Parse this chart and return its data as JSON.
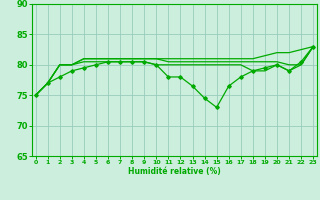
{
  "xlabel": "Humidité relative (%)",
  "background_color": "#cceedd",
  "grid_color": "#99ccbb",
  "line_color": "#00aa00",
  "x": [
    0,
    1,
    2,
    3,
    4,
    5,
    6,
    7,
    8,
    9,
    10,
    11,
    12,
    13,
    14,
    15,
    16,
    17,
    18,
    19,
    20,
    21,
    22,
    23
  ],
  "line1": [
    75,
    77,
    80,
    80,
    81,
    81,
    81,
    81,
    81,
    81,
    81,
    81,
    81,
    81,
    81,
    81,
    81,
    81,
    81,
    81.5,
    82,
    82,
    82.5,
    83
  ],
  "line2": [
    75,
    77,
    80,
    80,
    81,
    81,
    81,
    81,
    81,
    81,
    81,
    80.5,
    80.5,
    80.5,
    80.5,
    80.5,
    80.5,
    80.5,
    80.5,
    80.5,
    80.5,
    80,
    80,
    83
  ],
  "line3": [
    75,
    77,
    80,
    80,
    80.5,
    80.5,
    80.5,
    80.5,
    80.5,
    80.5,
    80,
    80,
    80,
    80,
    80,
    80,
    80,
    80,
    79,
    79,
    80,
    79,
    80,
    83
  ],
  "line4": [
    75,
    77,
    78,
    79,
    79.5,
    80,
    80.5,
    80.5,
    80.5,
    80.5,
    80,
    78,
    78,
    76.5,
    74.5,
    73,
    76.5,
    78,
    79,
    79.5,
    80,
    79,
    80.5,
    83
  ],
  "ylim": [
    65,
    90
  ],
  "yticks": [
    65,
    70,
    75,
    80,
    85,
    90
  ],
  "xticks": [
    0,
    1,
    2,
    3,
    4,
    5,
    6,
    7,
    8,
    9,
    10,
    11,
    12,
    13,
    14,
    15,
    16,
    17,
    18,
    19,
    20,
    21,
    22,
    23
  ]
}
